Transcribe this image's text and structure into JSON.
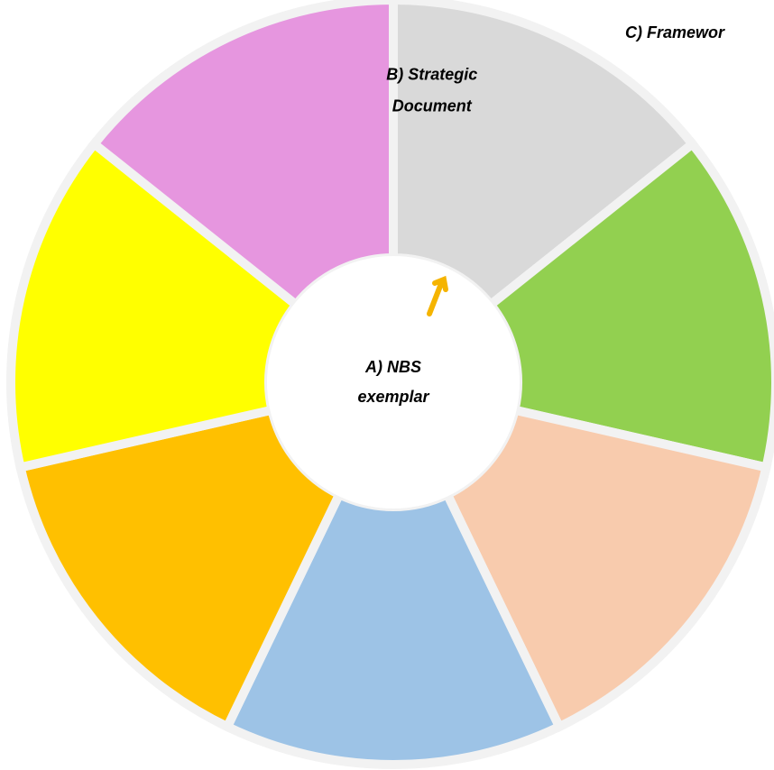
{
  "center": {
    "label_lines": [
      "A) NBS",
      "exemplar"
    ]
  },
  "segments": [
    {
      "color": "#d9d9d9",
      "label_lines": [
        "B) Strategic",
        "Document"
      ]
    },
    {
      "color": "#92d050"
    },
    {
      "color": "#f8cbad"
    },
    {
      "color": "#9dc3e6"
    },
    {
      "color": "#ffc000"
    },
    {
      "color": "#ffff00"
    },
    {
      "color": "#e696df"
    }
  ],
  "outer_label": "C) Framewor"
}
